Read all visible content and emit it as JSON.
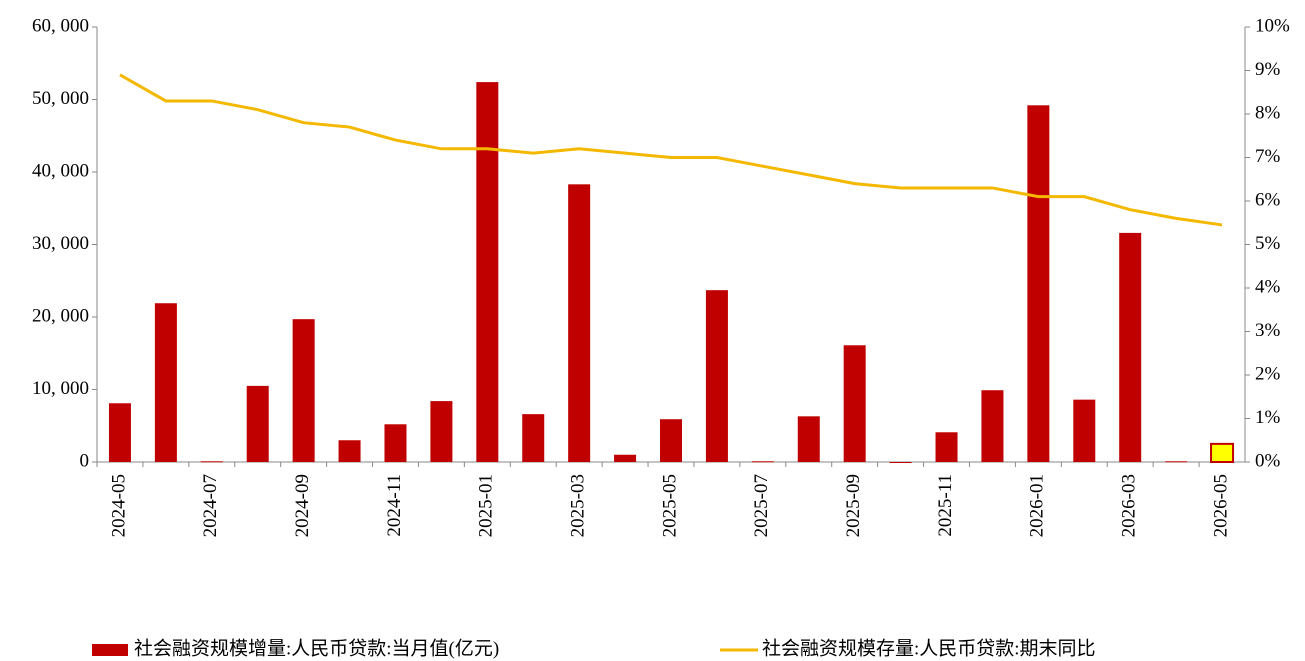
{
  "chart_data": {
    "type": "bar_line",
    "categories": [
      "2024-05",
      null,
      "2024-07",
      null,
      "2024-09",
      null,
      "2024-11",
      null,
      "2025-01",
      null,
      "2025-03",
      null,
      "2025-05",
      null,
      "2025-07",
      null,
      "2025-09",
      null,
      "2025-11",
      null,
      "2026-01",
      null,
      "2026-03",
      null,
      "2026-05"
    ],
    "series": [
      {
        "name": "社会融资规模增量:人民币贷款:当月值(亿元)",
        "type": "bar",
        "color": "#c00000",
        "values": [
          8100,
          21900,
          100,
          10500,
          19700,
          3000,
          5200,
          8400,
          52400,
          6600,
          38300,
          1000,
          5900,
          23700,
          100,
          6300,
          16100,
          0,
          4100,
          9900,
          49200,
          8600,
          31600,
          100,
          2500
        ],
        "highlight": {
          "index": 24,
          "color": "#ffff00"
        }
      },
      {
        "name": "社会融资规模存量:人民币贷款:期末同比",
        "type": "line",
        "color": "#f5b800",
        "axis": "y2",
        "values": [
          8.9,
          8.3,
          8.3,
          8.1,
          7.8,
          7.7,
          7.4,
          7.2,
          7.2,
          7.1,
          7.2,
          7.1,
          7.0,
          7.0,
          6.8,
          6.6,
          6.4,
          6.3,
          6.3,
          6.3,
          6.1,
          6.1,
          5.8,
          5.6,
          5.45
        ]
      }
    ],
    "ylim": [
      0,
      60000
    ],
    "yticks": [
      0,
      {
        "value": 10000,
        "label": "10, 000"
      },
      {
        "value": 20000,
        "label": "20, 000"
      },
      {
        "value": 30000,
        "label": "30, 000"
      },
      {
        "value": 40000,
        "label": "40, 000"
      },
      {
        "value": 50000,
        "label": "50, 000"
      },
      {
        "value": 60000,
        "label": "60, 000"
      }
    ],
    "y2lim": [
      0,
      10
    ],
    "y2ticks": [
      {
        "value": 0,
        "label": "0%"
      },
      {
        "value": 1,
        "label": "1%"
      },
      {
        "value": 2,
        "label": "2%"
      },
      {
        "value": 3,
        "label": "3%"
      },
      {
        "value": 4,
        "label": "4%"
      },
      {
        "value": 5,
        "label": "5%"
      },
      {
        "value": 6,
        "label": "6%"
      },
      {
        "value": 7,
        "label": "7%"
      },
      {
        "value": 8,
        "label": "8%"
      },
      {
        "value": 9,
        "label": "9%"
      },
      {
        "value": 10,
        "label": "10%"
      }
    ],
    "grid": false,
    "legend": "bottom"
  }
}
